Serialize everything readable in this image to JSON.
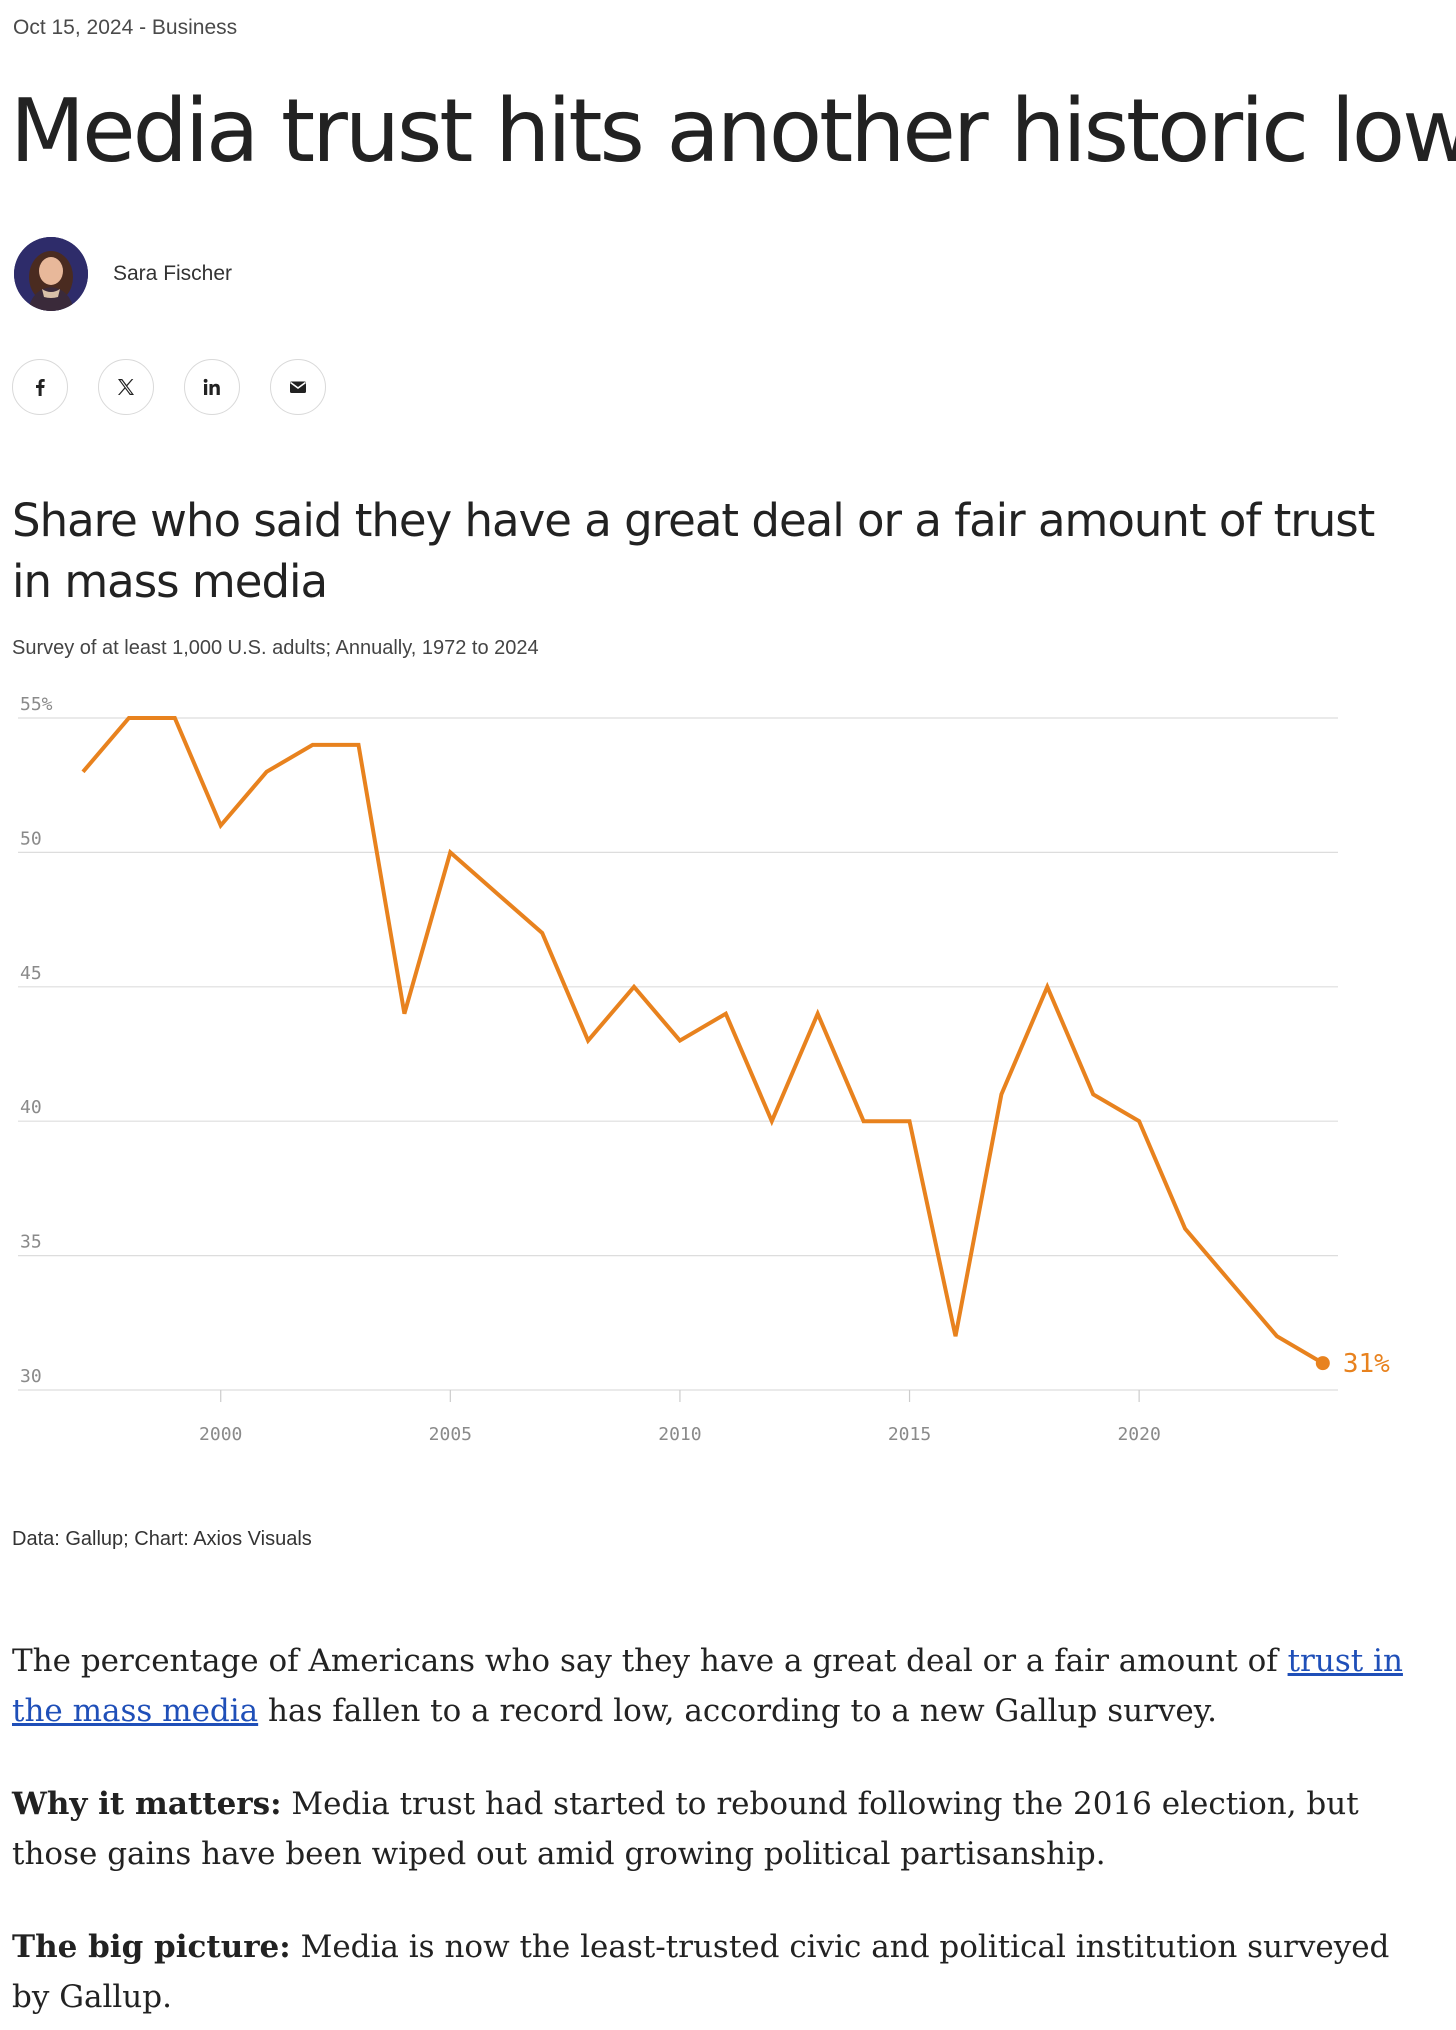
{
  "article": {
    "date": "Oct 15, 2024",
    "separator": " - ",
    "category": "Business",
    "headline": "Media trust hits another historic low",
    "author": "Sara Fischer"
  },
  "share_icons": [
    "facebook-icon",
    "x-icon",
    "linkedin-icon",
    "mail-icon"
  ],
  "chart": {
    "title": "Share who said they have a great deal or a fair amount of trust in mass media",
    "subtitle": "Survey of at least 1,000 U.S. adults; Annually, 1972 to 2024",
    "source": "Data: Gallup; Chart: Axios Visuals",
    "end_label": "31%"
  },
  "chart_data": {
    "type": "line",
    "title": "Share who said they have a great deal or a fair amount of trust in mass media",
    "subtitle": "Survey of at least 1,000 U.S. adults; Annually, 1972 to 2024",
    "x": [
      1997,
      1998,
      1999,
      2000,
      2001,
      2002,
      2003,
      2004,
      2005,
      2006,
      2007,
      2008,
      2009,
      2010,
      2011,
      2012,
      2013,
      2014,
      2015,
      2016,
      2017,
      2018,
      2019,
      2020,
      2021,
      2022,
      2023,
      2024
    ],
    "series": [
      {
        "values": [
          53,
          55,
          55,
          51,
          53,
          54,
          54,
          44,
          50,
          48.5,
          47,
          43,
          45,
          43,
          44,
          40,
          44,
          40,
          40,
          32,
          41,
          45,
          41,
          40,
          36,
          34,
          32,
          31
        ]
      }
    ],
    "xlim": [
      1996.5,
      2024.2
    ],
    "ylim": [
      30,
      55
    ],
    "xticks": [
      2000,
      2005,
      2010,
      2015,
      2020
    ],
    "xtick_labels": [
      "2000",
      "2005",
      "2010",
      "2015",
      "2020"
    ],
    "yticks": [
      30,
      35,
      40,
      45,
      50,
      55
    ],
    "ytick_labels": [
      "30",
      "35",
      "40",
      "45",
      "50",
      "55%"
    ],
    "grid": true,
    "line_color": "#e8821e",
    "end_label": "31%"
  },
  "paragraphs": {
    "p1_before": "The percentage of Americans who say they have a great deal or a fair amount of ",
    "p1_link": "trust in the mass media",
    "p1_after": " has fallen to a record low, according to a new Gallup survey.",
    "p2_lead": "Why it matters:",
    "p2_text": " Media trust had started to rebound following the 2016 election, but those gains have been wiped out amid growing political partisanship.",
    "p3_lead": "The big picture:",
    "p3_text": " Media is now the least-trusted civic and political institution surveyed by Gallup."
  },
  "colors": {
    "link": "#1f4fb8",
    "line": "#e8821e",
    "grid": "#dddddd"
  }
}
